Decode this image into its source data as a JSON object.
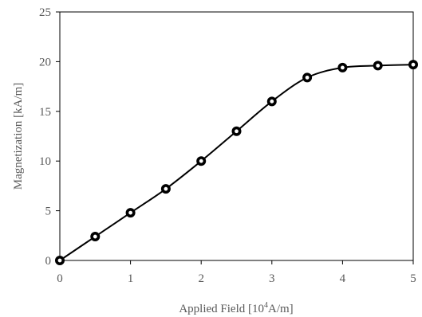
{
  "chart_data": {
    "type": "scatter",
    "xlabel_prefix": "Applied Field [10",
    "xlabel_sup": "4",
    "xlabel_suffix": "A/m]",
    "ylabel": "Magnetization [kA/m]",
    "xlim": [
      0,
      5
    ],
    "ylim": [
      0,
      25
    ],
    "xticks": [
      "0",
      "1",
      "2",
      "3",
      "4",
      "5"
    ],
    "yticks": [
      "0",
      "5",
      "10",
      "15",
      "20",
      "25"
    ],
    "grid": false,
    "series": [
      {
        "x": [
          0,
          0.5,
          1.0,
          1.5,
          2.0,
          2.5,
          3.0,
          3.5,
          4.0,
          4.5,
          5.0
        ],
        "y": [
          0,
          2.4,
          4.8,
          7.2,
          10.0,
          13.0,
          16.0,
          18.4,
          19.4,
          19.6,
          19.7
        ],
        "line": "smooth",
        "color": "#000000"
      }
    ]
  }
}
